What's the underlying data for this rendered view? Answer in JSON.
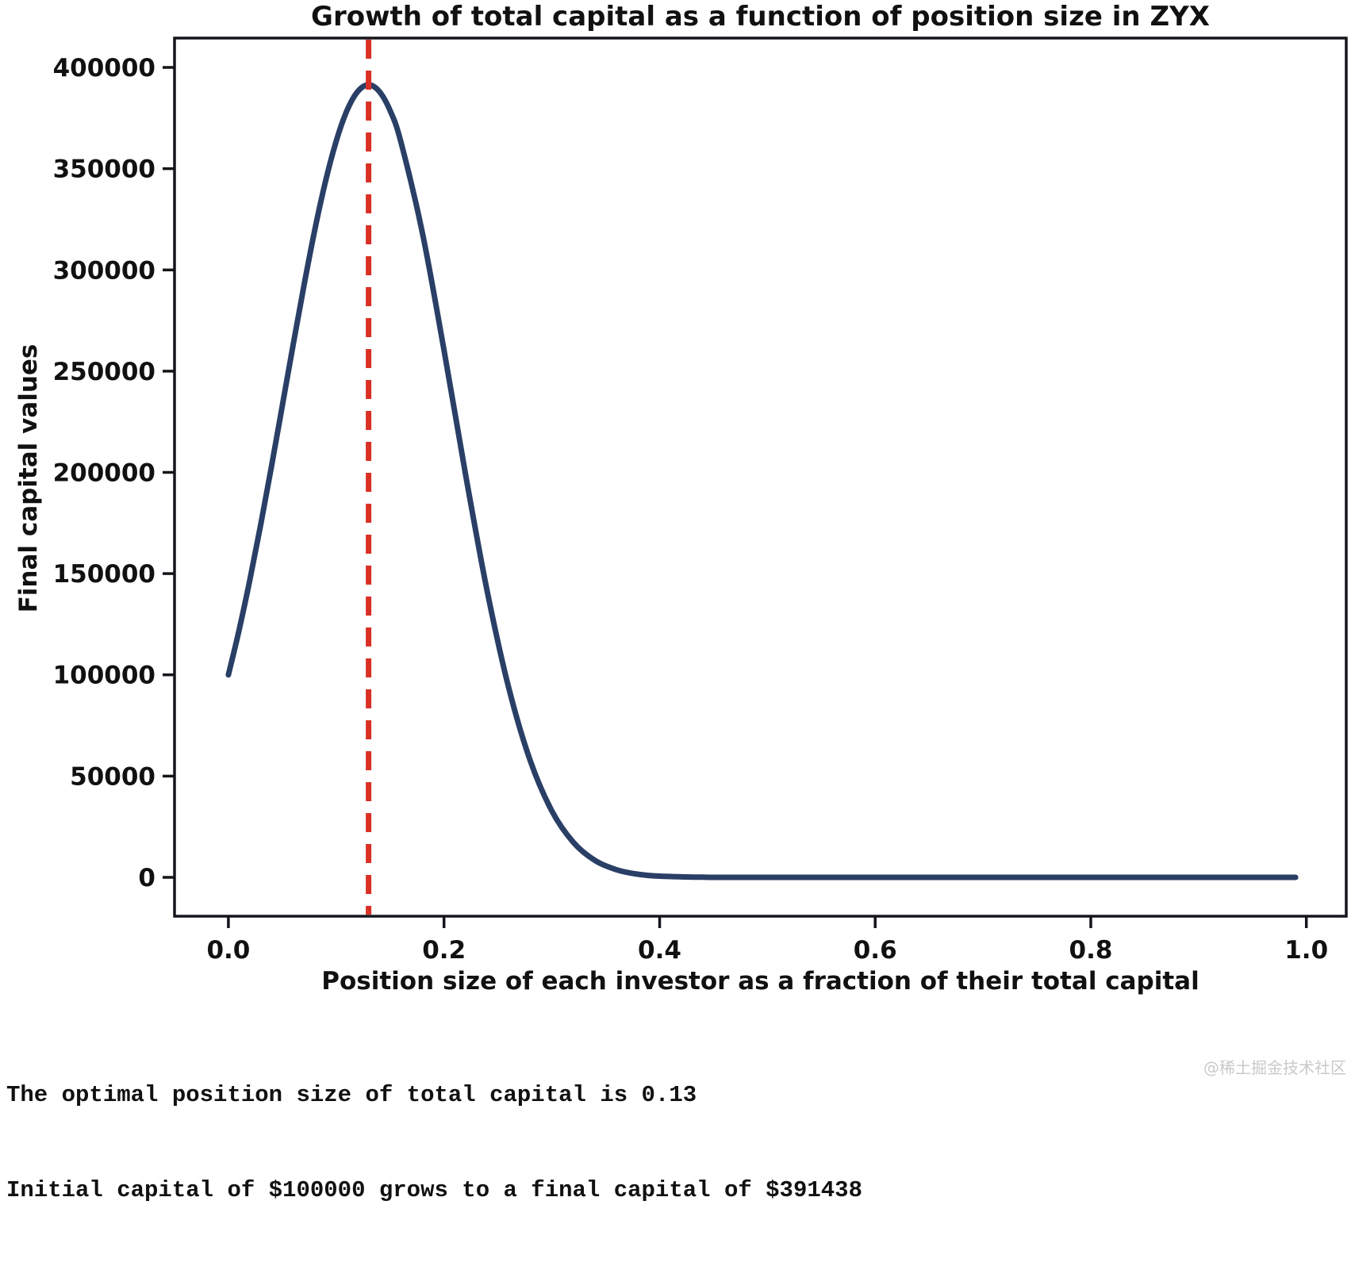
{
  "figure": {
    "watermark": "@稀土掘金技术社区"
  },
  "footer": {
    "line1": "The optimal position size of total capital is 0.13",
    "line2": "Initial capital of $100000 grows to a final capital of $391438"
  },
  "colors": {
    "curve": "#2a3f66",
    "vline": "#d93025",
    "axis": "#15151c",
    "text": "#111111",
    "watermark": "#c9c9c9",
    "background": "#ffffff"
  },
  "chart_data": {
    "type": "line",
    "title": "Growth of total capital as a function of position size in ZYX",
    "xlabel": "Position size of each investor as a fraction of their total capital",
    "ylabel": "Final capital values",
    "grid": false,
    "legend_position": "none",
    "xlim": [
      -0.05,
      1.037
    ],
    "ylim": [
      -19200,
      414500
    ],
    "xtick_values": [
      0.0,
      0.2,
      0.4,
      0.6,
      0.8,
      1.0
    ],
    "xtick_labels": [
      "0.0",
      "0.2",
      "0.4",
      "0.6",
      "0.8",
      "1.0"
    ],
    "ytick_values": [
      0,
      50000,
      100000,
      150000,
      200000,
      250000,
      300000,
      350000,
      400000
    ],
    "ytick_labels": [
      "0",
      "50000",
      "100000",
      "150000",
      "200000",
      "250000",
      "300000",
      "350000",
      "400000"
    ],
    "series": [
      {
        "name": "final-capital-vs-position-size",
        "color": "#2a3f66",
        "line_width": 7,
        "x": [
          0.0,
          0.01,
          0.02,
          0.03,
          0.04,
          0.05,
          0.06,
          0.07,
          0.08,
          0.09,
          0.1,
          0.11,
          0.12,
          0.13,
          0.14,
          0.15,
          0.16,
          0.18,
          0.2,
          0.22,
          0.24,
          0.26,
          0.28,
          0.3,
          0.32,
          0.34,
          0.36,
          0.38,
          0.4,
          0.44,
          0.48,
          0.52,
          0.6,
          0.7,
          0.8,
          0.9,
          0.99
        ],
        "y": [
          100000,
          122294,
          147176,
          174299,
          203146,
          232994,
          263001,
          292134,
          319360,
          343530,
          363583,
          378733,
          388116,
          391438,
          388105,
          378646,
          363300,
          318206,
          260393,
          198869,
          141542,
          93724,
          57628,
          32832,
          17289,
          8392,
          3740,
          1528,
          569,
          59,
          4,
          1,
          0,
          0,
          0,
          0,
          0
        ]
      }
    ],
    "vline": {
      "x": 0.13,
      "color": "#d93025",
      "style": "dashed",
      "meaning": "optimal position size"
    },
    "annotations": {
      "optimal_position_size": 0.13,
      "initial_capital": 100000,
      "final_capital": 391438
    }
  }
}
